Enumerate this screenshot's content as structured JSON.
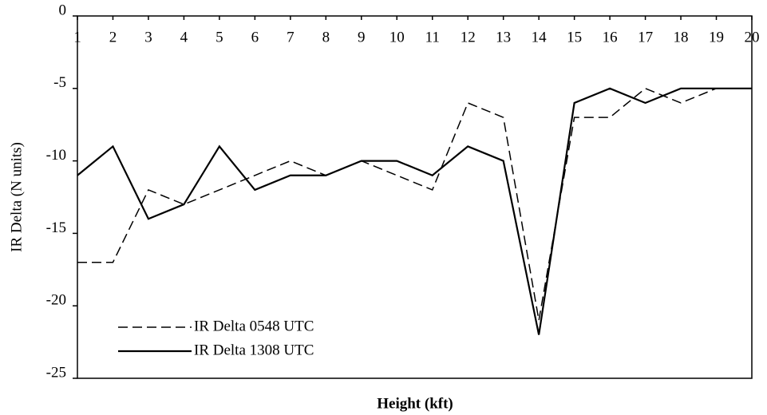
{
  "chart_data": {
    "type": "line",
    "x": [
      1,
      2,
      3,
      4,
      5,
      6,
      7,
      8,
      9,
      10,
      11,
      12,
      13,
      14,
      15,
      16,
      17,
      18,
      19,
      20
    ],
    "series": [
      {
        "name": "IR Delta 0548 UTC",
        "color": "#000000",
        "dash": true,
        "values": [
          -17,
          -17,
          -12,
          -13,
          -12,
          -11,
          -10,
          -11,
          -10,
          -11,
          -12,
          -6,
          -7,
          -21,
          -7,
          -7,
          -5,
          -6,
          -5,
          -5
        ]
      },
      {
        "name": "IR Delta 1308 UTC",
        "color": "#000000",
        "dash": false,
        "values": [
          -11,
          -9,
          -14,
          -13,
          -9,
          -12,
          -11,
          -11,
          -10,
          -10,
          -11,
          -9,
          -10,
          -22,
          -6,
          -5,
          -6,
          -5,
          -5,
          -5
        ]
      }
    ],
    "xlabel": "Height (kft)",
    "ylabel": "IR Delta (N units)",
    "xlim": [
      1,
      20
    ],
    "xticks": [
      1,
      2,
      3,
      4,
      5,
      6,
      7,
      8,
      9,
      10,
      11,
      12,
      13,
      14,
      15,
      16,
      17,
      18,
      19,
      20
    ],
    "ylim": [
      -25,
      0
    ],
    "yticks": [
      0,
      -5,
      -10,
      -15,
      -20,
      -25
    ],
    "grid": false
  }
}
